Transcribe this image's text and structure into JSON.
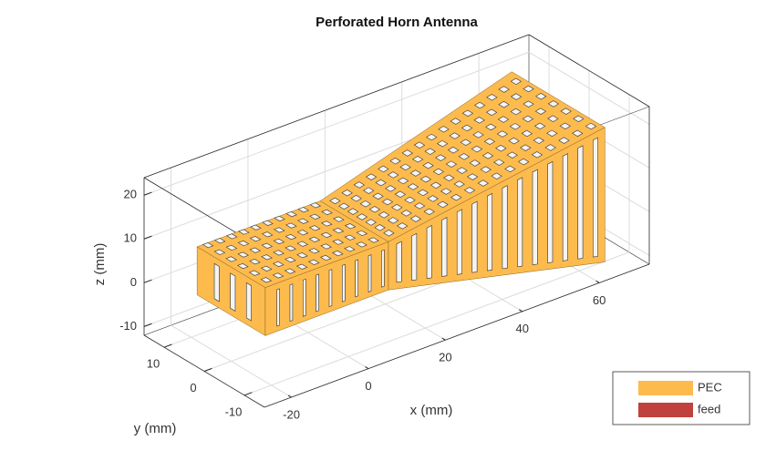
{
  "chart_data": {
    "type": "3d-geometry",
    "title": "Perforated Horn Antenna",
    "xlabel": "x (mm)",
    "ylabel": "y (mm)",
    "zlabel": "z (mm)",
    "xlim": [
      -27,
      73
    ],
    "ylim": [
      -15,
      15
    ],
    "zlim": [
      -12,
      24
    ],
    "xticks": [
      -20,
      0,
      20,
      40,
      60
    ],
    "yticks": [
      -10,
      0,
      10
    ],
    "zticks": [
      -10,
      0,
      10,
      20
    ],
    "grid": true,
    "legend": "lower right",
    "series": [
      {
        "name": "PEC",
        "color": "#fdbb4e"
      },
      {
        "name": "feed",
        "color": "#c0413d"
      }
    ]
  }
}
